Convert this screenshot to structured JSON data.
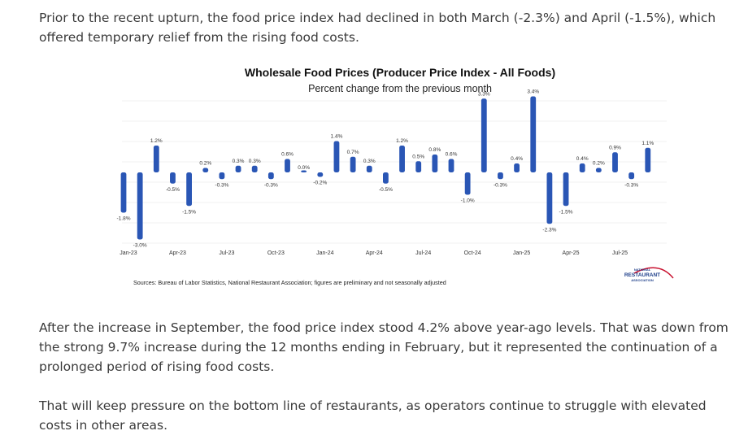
{
  "paragraphs": {
    "p1": "Prior to the recent upturn, the food price index had declined in both March (-2.3%) and April (-1.5%), which offered temporary relief from the rising food costs.",
    "p2": "After the increase in September, the food price index stood 4.2% above year-ago levels. That was down from the strong 9.7% increase during the 12 months ending in February, but it represented the continuation of a prolonged period of rising food costs.",
    "p3": "That will keep pressure on the bottom line of restaurants, as operators continue to struggle with elevated costs in other areas."
  },
  "chart_data": {
    "type": "bar",
    "title": "Wholesale Food Prices (Producer Price Index - All Foods)",
    "subtitle": "Percent change from the previous month",
    "categories": [
      "Jan-23",
      "Feb-23",
      "Mar-23",
      "Apr-23",
      "May-23",
      "Jun-23",
      "Jul-23",
      "Aug-23",
      "Sep-23",
      "Oct-23",
      "Nov-23",
      "Dec-23",
      "Jan-24",
      "Feb-24",
      "Mar-24",
      "Apr-24",
      "May-24",
      "Jun-24",
      "Jul-24",
      "Aug-24",
      "Sep-24",
      "Oct-24",
      "Nov-24",
      "Dec-24",
      "Jan-25",
      "Feb-25",
      "Mar-25",
      "Apr-25",
      "May-25",
      "Jun-25",
      "Jul-25",
      "Aug-25",
      "Sep-25"
    ],
    "values": [
      -1.8,
      -3.0,
      1.2,
      -0.5,
      -1.5,
      0.2,
      -0.3,
      0.3,
      0.3,
      -0.3,
      0.6,
      0.0,
      -0.2,
      1.4,
      0.7,
      0.3,
      -0.5,
      1.2,
      0.5,
      0.8,
      0.6,
      -1.0,
      3.3,
      -0.3,
      0.4,
      3.4,
      -2.3,
      -1.5,
      0.4,
      0.2,
      0.9,
      -0.3,
      1.1
    ],
    "data_labels": [
      "-1.8%",
      "-3.0%",
      "1.2%",
      "-0.5%",
      "-1.5%",
      "0.2%",
      "-0.3%",
      "0.3%",
      "0.3%",
      "-0.3%",
      "0.6%",
      "0.0%",
      "-0.2%",
      "1.4%",
      "0.7%",
      "0.3%",
      "-0.5%",
      "1.2%",
      "0.5%",
      "0.8%",
      "0.6%",
      "-1.0%",
      "3.3%",
      "-0.3%",
      "0.4%",
      "3.4%",
      "-2.3%",
      "-1.5%",
      "0.4%",
      "0.2%",
      "0.9%",
      "-0.3%",
      "1.1%"
    ],
    "x_tick_labels": [
      "Jan-23",
      "Apr-23",
      "Jul-23",
      "Oct-23",
      "Jan-24",
      "Apr-24",
      "Jul-24",
      "Oct-24",
      "Jan-25",
      "Apr-25",
      "Jul-25"
    ],
    "xlabel": "",
    "ylabel": "",
    "ylim": [
      -3.2,
      3.6
    ],
    "grid": true,
    "bar_color": "#2a56b5",
    "source": "Sources: Bureau of Labor Statistics, National Restaurant Association; figures are preliminary and not seasonally adjusted"
  },
  "logo": {
    "top": "NATIONAL",
    "main": "RESTAURANT",
    "bottom": "ASSOCIATION",
    "accent_color": "#c8102e",
    "text_color": "#1e3f8a"
  }
}
